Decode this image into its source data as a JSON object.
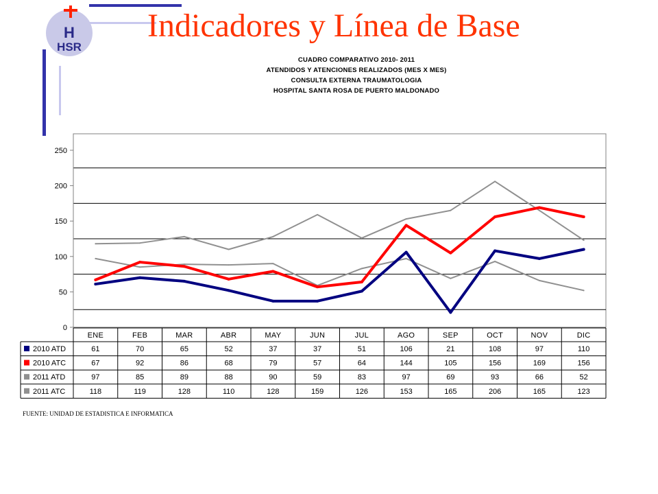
{
  "header": {
    "title": "Indicadores y Línea de Base",
    "logo_text": "HSR",
    "subtitle_lines": [
      "CUADRO COMPARATIVO 2010- 2011",
      "ATENDIDOS Y ATENCIONES  REALIZADOS (MES X MES)",
      "CONSULTA EXTERNA TRAUMATOLOGIA",
      "HOSPITAL SANTA ROSA DE PUERTO MALDONADO"
    ]
  },
  "footer": {
    "source": "FUENTE: UNIDAD DE ESTADISTICA E INFORMATICA"
  },
  "colors": {
    "title": "#ff3300",
    "decor": "#3333aa",
    "decor_light": "#c8c8ee"
  },
  "chart_data": {
    "type": "line",
    "categories": [
      "ENE",
      "FEB",
      "MAR",
      "ABR",
      "MAY",
      "JUN",
      "JUL",
      "AGO",
      "SEP",
      "OCT",
      "NOV",
      "DIC"
    ],
    "ylim": [
      0,
      250
    ],
    "yticks": [
      0,
      50,
      100,
      150,
      200,
      250
    ],
    "grid": true,
    "legend": "data-table-below",
    "series": [
      {
        "name": "2010 ATD",
        "color": "#000080",
        "values": [
          61,
          70,
          65,
          52,
          37,
          37,
          51,
          106,
          21,
          108,
          97,
          110
        ]
      },
      {
        "name": "2010 ATC",
        "color": "#ff0000",
        "values": [
          67,
          92,
          86,
          68,
          79,
          57,
          64,
          144,
          105,
          156,
          169,
          156
        ]
      },
      {
        "name": "2011 ATD",
        "color": "#909090",
        "values": [
          97,
          85,
          89,
          88,
          90,
          59,
          83,
          97,
          69,
          93,
          66,
          52
        ]
      },
      {
        "name": "2011 ATC",
        "color": "#909090",
        "values": [
          118,
          119,
          128,
          110,
          128,
          159,
          126,
          153,
          165,
          206,
          165,
          123
        ]
      }
    ]
  }
}
